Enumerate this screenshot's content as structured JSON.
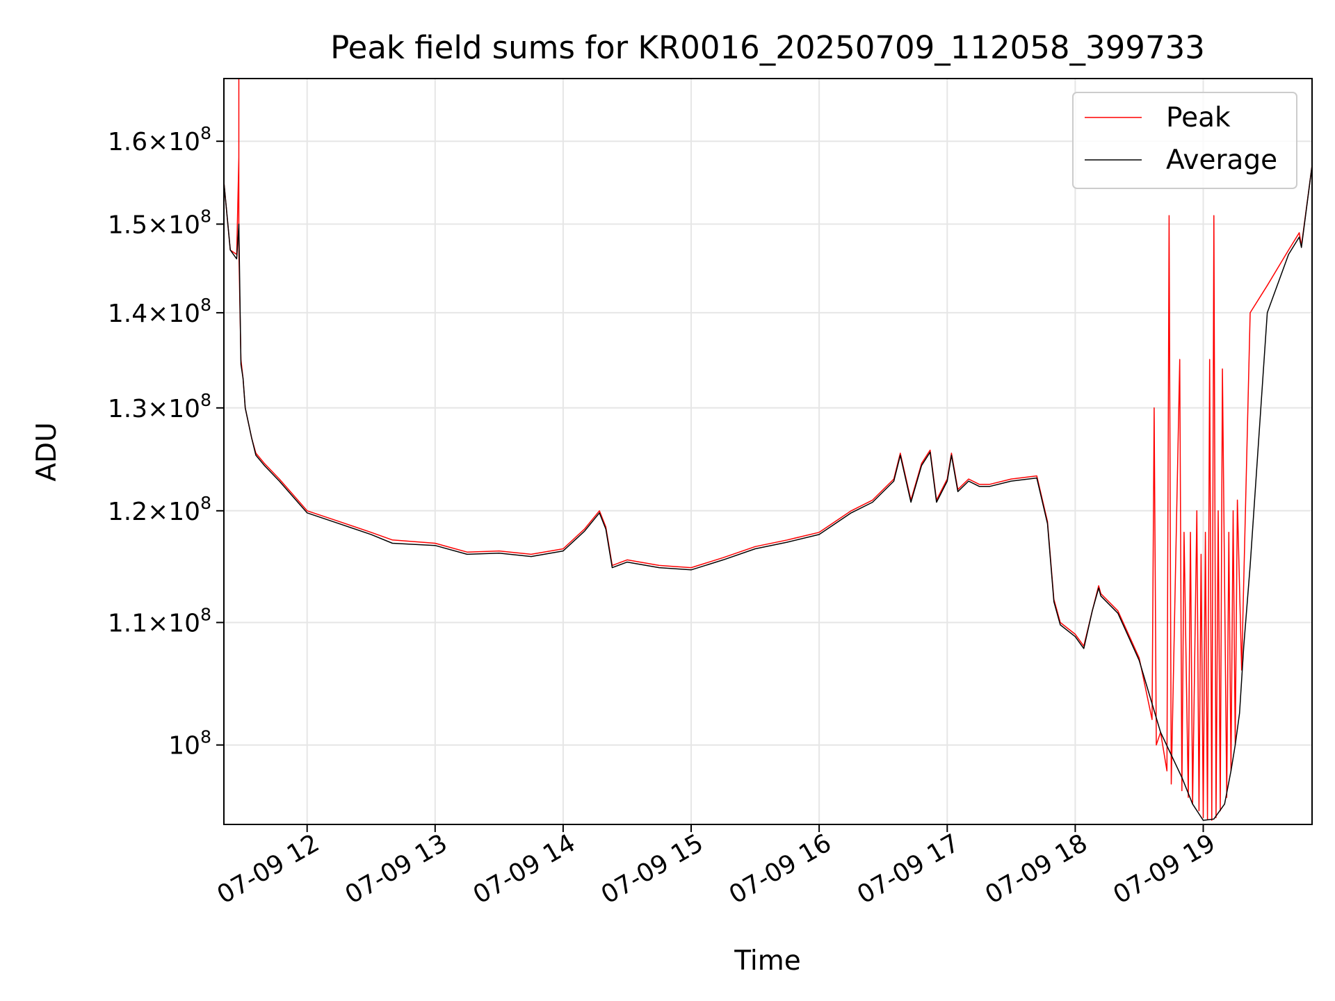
{
  "chart_data": {
    "type": "line",
    "title": "Peak field sums for KR0016_20250709_112058_399733",
    "xlabel": "Time",
    "ylabel": "ADU",
    "yscale": "log",
    "grid": true,
    "legend_position": "top-right",
    "xlim": [
      "2025-07-09 11:21",
      "2025-07-09 19:51"
    ],
    "ylim": [
      94000000,
      168000000
    ],
    "x_ticks": [
      {
        "value": "2025-07-09 12:00",
        "label": "07-09 12"
      },
      {
        "value": "2025-07-09 13:00",
        "label": "07-09 13"
      },
      {
        "value": "2025-07-09 14:00",
        "label": "07-09 14"
      },
      {
        "value": "2025-07-09 15:00",
        "label": "07-09 15"
      },
      {
        "value": "2025-07-09 16:00",
        "label": "07-09 16"
      },
      {
        "value": "2025-07-09 17:00",
        "label": "07-09 17"
      },
      {
        "value": "2025-07-09 18:00",
        "label": "07-09 18"
      },
      {
        "value": "2025-07-09 19:00",
        "label": "07-09 19"
      }
    ],
    "y_ticks": [
      {
        "value": 100000000,
        "mant": "",
        "exp": "8"
      },
      {
        "value": 110000000,
        "mant": "1.1",
        "exp": "8"
      },
      {
        "value": 120000000,
        "mant": "1.2",
        "exp": "8"
      },
      {
        "value": 130000000,
        "mant": "1.3",
        "exp": "8"
      },
      {
        "value": 140000000,
        "mant": "1.4",
        "exp": "8"
      },
      {
        "value": 150000000,
        "mant": "1.5",
        "exp": "8"
      },
      {
        "value": 160000000,
        "mant": "1.6",
        "exp": "8"
      }
    ],
    "series": [
      {
        "name": "Peak",
        "color": "#ff0000",
        "x": [
          "2025-07-09 11:21",
          "2025-07-09 11:24",
          "2025-07-09 11:27",
          "2025-07-09 11:28",
          "2025-07-09 11:28",
          "2025-07-09 11:28",
          "2025-07-09 11:29",
          "2025-07-09 11:30",
          "2025-07-09 11:31",
          "2025-07-09 11:34",
          "2025-07-09 11:36",
          "2025-07-09 11:40",
          "2025-07-09 11:47",
          "2025-07-09 12:00",
          "2025-07-09 12:15",
          "2025-07-09 12:30",
          "2025-07-09 12:40",
          "2025-07-09 13:00",
          "2025-07-09 13:15",
          "2025-07-09 13:30",
          "2025-07-09 13:45",
          "2025-07-09 14:00",
          "2025-07-09 14:10",
          "2025-07-09 14:17",
          "2025-07-09 14:20",
          "2025-07-09 14:23",
          "2025-07-09 14:30",
          "2025-07-09 14:45",
          "2025-07-09 15:00",
          "2025-07-09 15:15",
          "2025-07-09 15:30",
          "2025-07-09 15:45",
          "2025-07-09 16:00",
          "2025-07-09 16:15",
          "2025-07-09 16:25",
          "2025-07-09 16:35",
          "2025-07-09 16:38",
          "2025-07-09 16:43",
          "2025-07-09 16:48",
          "2025-07-09 16:52",
          "2025-07-09 16:55",
          "2025-07-09 17:00",
          "2025-07-09 17:02",
          "2025-07-09 17:05",
          "2025-07-09 17:10",
          "2025-07-09 17:15",
          "2025-07-09 17:20",
          "2025-07-09 17:30",
          "2025-07-09 17:42",
          "2025-07-09 17:47",
          "2025-07-09 17:50",
          "2025-07-09 17:53",
          "2025-07-09 18:00",
          "2025-07-09 18:04",
          "2025-07-09 18:08",
          "2025-07-09 18:11",
          "2025-07-09 18:12",
          "2025-07-09 18:20",
          "2025-07-09 18:30",
          "2025-07-09 18:36",
          "2025-07-09 18:37",
          "2025-07-09 18:38",
          "2025-07-09 18:40",
          "2025-07-09 18:43",
          "2025-07-09 18:44",
          "2025-07-09 18:45",
          "2025-07-09 18:49",
          "2025-07-09 18:50",
          "2025-07-09 18:51",
          "2025-07-09 18:53",
          "2025-07-09 18:54",
          "2025-07-09 18:55",
          "2025-07-09 18:57",
          "2025-07-09 18:58",
          "2025-07-09 18:59",
          "2025-07-09 19:00",
          "2025-07-09 19:01",
          "2025-07-09 19:02",
          "2025-07-09 19:03",
          "2025-07-09 19:04",
          "2025-07-09 19:05",
          "2025-07-09 19:06",
          "2025-07-09 19:07",
          "2025-07-09 19:08",
          "2025-07-09 19:09",
          "2025-07-09 19:11",
          "2025-07-09 19:12",
          "2025-07-09 19:13",
          "2025-07-09 19:14",
          "2025-07-09 19:15",
          "2025-07-09 19:16",
          "2025-07-09 19:18",
          "2025-07-09 19:22",
          "2025-07-09 19:30",
          "2025-07-09 19:40",
          "2025-07-09 19:45",
          "2025-07-09 19:46",
          "2025-07-09 19:51"
        ],
        "y": [
          155000000,
          147000000,
          146500000,
          158000000,
          168000000,
          147000000,
          135000000,
          133000000,
          130000000,
          127000000,
          125500000,
          124500000,
          123000000,
          120000000,
          119000000,
          118000000,
          117300000,
          117000000,
          116200000,
          116300000,
          116000000,
          116500000,
          118300000,
          120000000,
          118500000,
          115000000,
          115500000,
          115000000,
          114800000,
          115700000,
          116700000,
          117300000,
          118000000,
          120000000,
          121000000,
          123000000,
          125500000,
          121000000,
          124500000,
          125800000,
          121000000,
          123000000,
          125500000,
          122000000,
          123000000,
          122500000,
          122500000,
          123000000,
          123300000,
          119000000,
          112000000,
          110000000,
          109000000,
          108000000,
          111000000,
          113200000,
          112500000,
          111000000,
          107000000,
          102000000,
          130000000,
          100000000,
          101000000,
          98000000,
          151000000,
          97000000,
          135000000,
          96500000,
          118000000,
          96000000,
          118000000,
          95500000,
          120000000,
          95000000,
          116000000,
          94500000,
          118000000,
          94400000,
          135000000,
          94300000,
          151000000,
          94500000,
          120000000,
          95000000,
          134000000,
          96000000,
          118000000,
          98000000,
          120000000,
          100000000,
          121000000,
          106000000,
          140000000,
          143000000,
          147000000,
          149000000,
          147500000,
          157000000
        ]
      },
      {
        "name": "Average",
        "color": "#000000",
        "x": [
          "2025-07-09 11:21",
          "2025-07-09 11:24",
          "2025-07-09 11:27",
          "2025-07-09 11:28",
          "2025-07-09 11:29",
          "2025-07-09 11:30",
          "2025-07-09 11:31",
          "2025-07-09 11:34",
          "2025-07-09 11:36",
          "2025-07-09 11:40",
          "2025-07-09 11:47",
          "2025-07-09 12:00",
          "2025-07-09 12:15",
          "2025-07-09 12:30",
          "2025-07-09 12:40",
          "2025-07-09 13:00",
          "2025-07-09 13:15",
          "2025-07-09 13:30",
          "2025-07-09 13:45",
          "2025-07-09 14:00",
          "2025-07-09 14:10",
          "2025-07-09 14:17",
          "2025-07-09 14:20",
          "2025-07-09 14:23",
          "2025-07-09 14:30",
          "2025-07-09 14:45",
          "2025-07-09 15:00",
          "2025-07-09 15:15",
          "2025-07-09 15:30",
          "2025-07-09 15:45",
          "2025-07-09 16:00",
          "2025-07-09 16:15",
          "2025-07-09 16:25",
          "2025-07-09 16:35",
          "2025-07-09 16:38",
          "2025-07-09 16:43",
          "2025-07-09 16:48",
          "2025-07-09 16:52",
          "2025-07-09 16:55",
          "2025-07-09 17:00",
          "2025-07-09 17:02",
          "2025-07-09 17:05",
          "2025-07-09 17:10",
          "2025-07-09 17:15",
          "2025-07-09 17:20",
          "2025-07-09 17:30",
          "2025-07-09 17:42",
          "2025-07-09 17:47",
          "2025-07-09 17:50",
          "2025-07-09 17:53",
          "2025-07-09 18:00",
          "2025-07-09 18:04",
          "2025-07-09 18:08",
          "2025-07-09 18:11",
          "2025-07-09 18:12",
          "2025-07-09 18:20",
          "2025-07-09 18:30",
          "2025-07-09 18:40",
          "2025-07-09 18:50",
          "2025-07-09 18:55",
          "2025-07-09 19:00",
          "2025-07-09 19:05",
          "2025-07-09 19:10",
          "2025-07-09 19:13",
          "2025-07-09 19:15",
          "2025-07-09 19:17",
          "2025-07-09 19:19",
          "2025-07-09 19:22",
          "2025-07-09 19:30",
          "2025-07-09 19:40",
          "2025-07-09 19:45",
          "2025-07-09 19:46",
          "2025-07-09 19:51"
        ],
        "y": [
          155000000,
          147000000,
          146000000,
          150000000,
          134500000,
          133000000,
          130000000,
          127000000,
          125300000,
          124300000,
          122800000,
          119800000,
          118800000,
          117800000,
          117000000,
          116800000,
          116000000,
          116100000,
          115800000,
          116300000,
          118100000,
          119800000,
          118300000,
          114800000,
          115300000,
          114800000,
          114600000,
          115500000,
          116500000,
          117100000,
          117800000,
          119800000,
          120800000,
          122800000,
          125300000,
          120800000,
          124300000,
          125600000,
          120800000,
          122800000,
          125300000,
          121800000,
          122800000,
          122300000,
          122300000,
          122800000,
          123100000,
          118800000,
          111800000,
          109800000,
          108800000,
          107800000,
          111000000,
          113000000,
          112300000,
          110800000,
          106800000,
          101000000,
          97500000,
          95500000,
          94300000,
          94400000,
          95500000,
          98000000,
          100000000,
          102500000,
          108000000,
          115000000,
          140000000,
          146500000,
          148500000,
          147300000,
          157000000
        ]
      }
    ]
  }
}
